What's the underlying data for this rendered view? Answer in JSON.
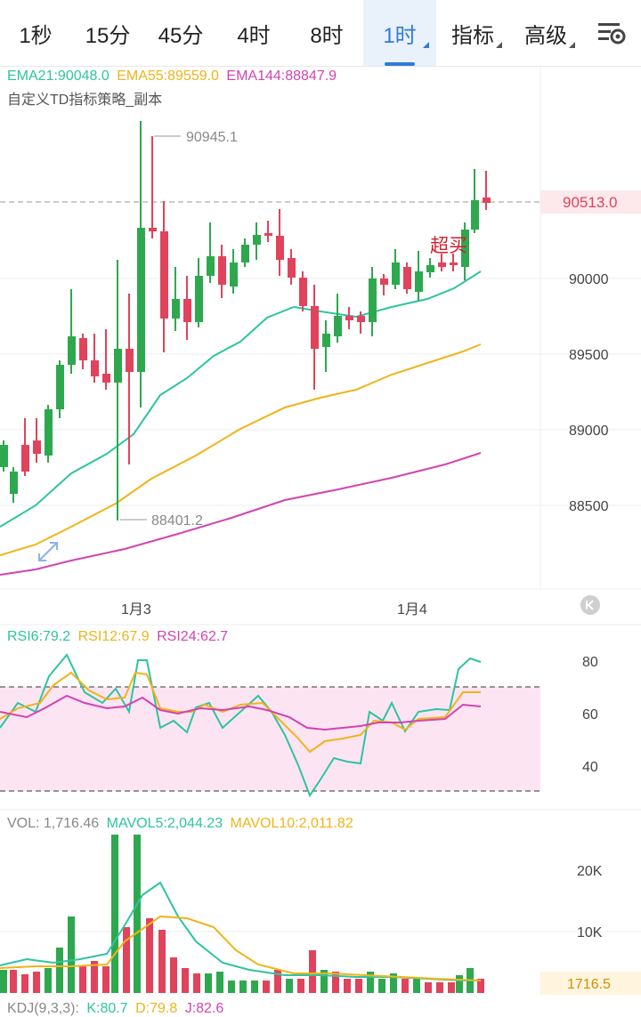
{
  "tabs": [
    {
      "label": "1秒"
    },
    {
      "label": "15分"
    },
    {
      "label": "45分"
    },
    {
      "label": "4时"
    },
    {
      "label": "8时"
    },
    {
      "label": "1时",
      "active": true,
      "dropdown": true
    },
    {
      "label": "指标",
      "dropdown": true
    },
    {
      "label": "高级",
      "dropdown": true
    }
  ],
  "settings_icon": "chart-settings-icon",
  "ema_legend": {
    "ema21": "EMA21:90048.0",
    "ema55": "EMA55:89559.0",
    "ema144": "EMA144:88847.9",
    "colors": {
      "ema21": "#2ec4a0",
      "ema55": "#f0b41a",
      "ema144": "#d243b2"
    }
  },
  "strategy_label": "自定义TD指标策略_副本",
  "price_axis": [
    "90000",
    "89500",
    "89000",
    "88500"
  ],
  "current_price": "90513.0",
  "high_marker": "90945.1",
  "low_marker": "88401.2",
  "signal_text": "超买",
  "date_labels": [
    "1月3",
    "1月4"
  ],
  "expand_icon": "expand-arrows-icon",
  "reset_icon": "scroll-to-latest-icon",
  "rsi_legend": {
    "rsi6": "RSI6:79.2",
    "rsi12": "RSI12:67.9",
    "rsi24": "RSI24:62.7"
  },
  "rsi_axis": [
    "80",
    "60",
    "40"
  ],
  "vol_legend": {
    "vol": "VOL: 1,716.46",
    "mavol5": "MAVOL5:2,044.23",
    "mavol10": "MAVOL10:2,011.82"
  },
  "vol_axis": [
    "20K",
    "10K"
  ],
  "vol_current": "1716.5",
  "kdj_legend": {
    "kdj": "KDJ(9,3,3):",
    "k": "K:80.7",
    "d": "D:79.8",
    "j": "J:82.6"
  },
  "colors": {
    "up": "#2ea84f",
    "down": "#e0435b",
    "accent": "#2f7ad8"
  }
}
